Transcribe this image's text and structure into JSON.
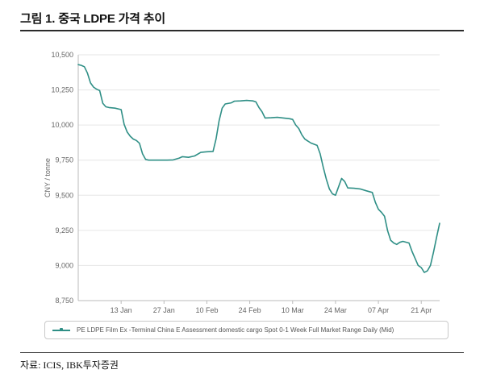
{
  "header": {
    "figure_title": "그림 1. 중국 LDPE 가격 추이"
  },
  "footer": {
    "source": "자료: ICIS, IBK투자증권"
  },
  "chart_data": {
    "type": "line",
    "title": "그림 1. 중국 LDPE 가격 추이",
    "xlabel": "",
    "ylabel": "CNY / tonne",
    "ylim": [
      8750,
      10500
    ],
    "ytick_step": 250,
    "grid": "horizontal",
    "legend_position": "bottom",
    "line_color": "#2f8f86",
    "axis_color": "#bbbbbb",
    "grid_color": "#e6e6e6",
    "tick_text_color": "#666666",
    "x_range_days": [
      0,
      118
    ],
    "xticks": [
      {
        "day": 14,
        "label": "13 Jan"
      },
      {
        "day": 28,
        "label": "27 Jan"
      },
      {
        "day": 42,
        "label": "10 Feb"
      },
      {
        "day": 56,
        "label": "24 Feb"
      },
      {
        "day": 70,
        "label": "10 Mar"
      },
      {
        "day": 84,
        "label": "24 Mar"
      },
      {
        "day": 98,
        "label": "07 Apr"
      },
      {
        "day": 112,
        "label": "21 Apr"
      }
    ],
    "series": [
      {
        "name": "PE LDPE Film Ex -Terminal China E Assessment domestic cargo Spot 0-1 Week Full Market Range Daily (Mid)",
        "color": "#2f8f86",
        "points": [
          [
            0,
            10430
          ],
          [
            1,
            10425
          ],
          [
            2,
            10415
          ],
          [
            3,
            10370
          ],
          [
            4,
            10300
          ],
          [
            5,
            10270
          ],
          [
            6,
            10255
          ],
          [
            7,
            10245
          ],
          [
            8,
            10155
          ],
          [
            9,
            10130
          ],
          [
            10,
            10125
          ],
          [
            12,
            10120
          ],
          [
            14,
            10110
          ],
          [
            15,
            10005
          ],
          [
            16,
            9950
          ],
          [
            17,
            9920
          ],
          [
            18,
            9900
          ],
          [
            19,
            9890
          ],
          [
            20,
            9870
          ],
          [
            21,
            9795
          ],
          [
            22,
            9755
          ],
          [
            23,
            9750
          ],
          [
            26,
            9750
          ],
          [
            29,
            9750
          ],
          [
            31,
            9752
          ],
          [
            33,
            9765
          ],
          [
            34,
            9775
          ],
          [
            36,
            9770
          ],
          [
            38,
            9780
          ],
          [
            40,
            9805
          ],
          [
            42,
            9810
          ],
          [
            44,
            9812
          ],
          [
            45,
            9900
          ],
          [
            46,
            10030
          ],
          [
            47,
            10120
          ],
          [
            48,
            10150
          ],
          [
            50,
            10158
          ],
          [
            51,
            10170
          ],
          [
            53,
            10172
          ],
          [
            55,
            10175
          ],
          [
            57,
            10172
          ],
          [
            58,
            10165
          ],
          [
            59,
            10125
          ],
          [
            60,
            10095
          ],
          [
            61,
            10050
          ],
          [
            63,
            10052
          ],
          [
            65,
            10055
          ],
          [
            67,
            10050
          ],
          [
            69,
            10045
          ],
          [
            70,
            10040
          ],
          [
            71,
            10000
          ],
          [
            72,
            9975
          ],
          [
            73,
            9930
          ],
          [
            74,
            9900
          ],
          [
            76,
            9872
          ],
          [
            78,
            9855
          ],
          [
            79,
            9795
          ],
          [
            80,
            9700
          ],
          [
            81,
            9615
          ],
          [
            82,
            9545
          ],
          [
            83,
            9510
          ],
          [
            84,
            9500
          ],
          [
            85,
            9560
          ],
          [
            86,
            9620
          ],
          [
            87,
            9598
          ],
          [
            88,
            9552
          ],
          [
            90,
            9550
          ],
          [
            92,
            9545
          ],
          [
            94,
            9532
          ],
          [
            96,
            9520
          ],
          [
            97,
            9450
          ],
          [
            98,
            9400
          ],
          [
            99,
            9378
          ],
          [
            100,
            9350
          ],
          [
            101,
            9248
          ],
          [
            102,
            9180
          ],
          [
            103,
            9160
          ],
          [
            104,
            9150
          ],
          [
            105,
            9165
          ],
          [
            106,
            9172
          ],
          [
            107,
            9166
          ],
          [
            108,
            9160
          ],
          [
            109,
            9100
          ],
          [
            110,
            9050
          ],
          [
            111,
            9000
          ],
          [
            112,
            8985
          ],
          [
            113,
            8950
          ],
          [
            114,
            8962
          ],
          [
            115,
            9000
          ],
          [
            116,
            9095
          ],
          [
            117,
            9200
          ],
          [
            118,
            9300
          ]
        ]
      }
    ]
  }
}
